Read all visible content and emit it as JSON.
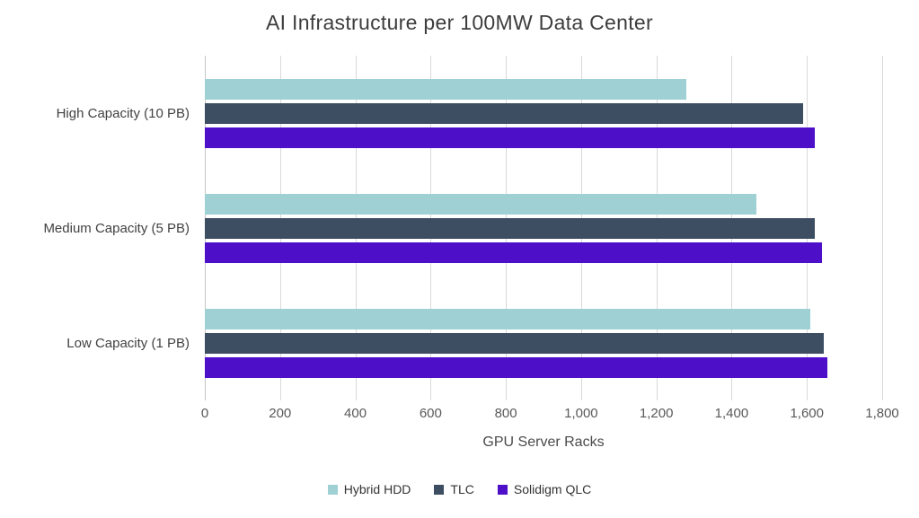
{
  "title": "AI Infrastructure per 100MW Data Center",
  "chart_data": {
    "type": "bar",
    "orientation": "horizontal",
    "title": "AI Infrastructure per 100MW Data Center",
    "categories": [
      "High Capacity (10 PB)",
      "Medium Capacity (5 PB)",
      "Low Capacity (1 PB)"
    ],
    "series": [
      {
        "name": "Hybrid HDD",
        "color": "#9fd0d4",
        "values": [
          1280,
          1465,
          1610
        ]
      },
      {
        "name": "TLC",
        "color": "#3d4d62",
        "values": [
          1590,
          1620,
          1645
        ]
      },
      {
        "name": "Solidigm QLC",
        "color": "#4e0fc8",
        "values": [
          1620,
          1640,
          1655
        ]
      }
    ],
    "xlabel": "GPU Server Racks",
    "ylabel": "",
    "xlim": [
      0,
      1800
    ],
    "xticks": [
      0,
      200,
      400,
      600,
      800,
      1000,
      1200,
      1400,
      1600,
      1800
    ],
    "xtick_labels": [
      "0",
      "200",
      "400",
      "600",
      "800",
      "1,000",
      "1,200",
      "1,400",
      "1,600",
      "1,800"
    ],
    "grid": "vertical",
    "legend_position": "bottom"
  }
}
